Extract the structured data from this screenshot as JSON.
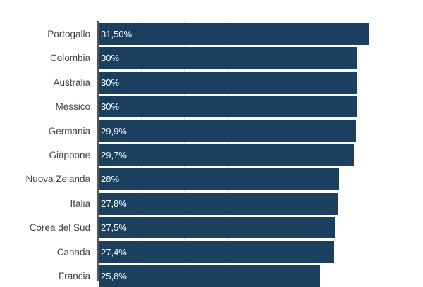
{
  "chart_data": {
    "type": "bar",
    "orientation": "horizontal",
    "title": "",
    "xlabel": "",
    "ylabel": "",
    "xlim": [
      0,
      35
    ],
    "grid": true,
    "grid_ticks": [
      0,
      5,
      10,
      15,
      20,
      25,
      30,
      35
    ],
    "bar_color": "#1b3f5e",
    "categories": [
      "Portogallo",
      "Colombia",
      "Australia",
      "Messico",
      "Germania",
      "Giappone",
      "Nuova Zelanda",
      "Italia",
      "Corea del Sud",
      "Canada",
      "Francia"
    ],
    "values": [
      31.5,
      30,
      30,
      30,
      29.9,
      29.7,
      28,
      27.8,
      27.5,
      27.4,
      25.8
    ],
    "value_labels": [
      "31,50%",
      "30%",
      "30%",
      "30%",
      "29,9%",
      "29,7%",
      "28%",
      "27,8%",
      "27,5%",
      "27,4%",
      "25,8%"
    ]
  }
}
